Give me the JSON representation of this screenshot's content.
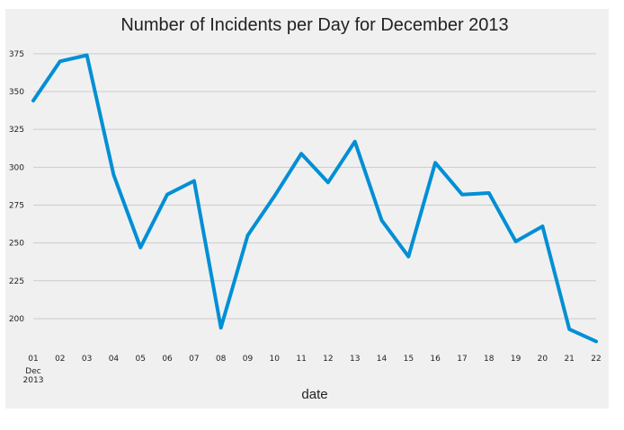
{
  "chart_data": {
    "type": "line",
    "title": "Number of Incidents per Day for December 2013",
    "xlabel": "date",
    "ylabel": "",
    "x_tick_labels": [
      "01",
      "02",
      "03",
      "04",
      "05",
      "06",
      "07",
      "08",
      "09",
      "10",
      "11",
      "12",
      "13",
      "14",
      "15",
      "16",
      "17",
      "18",
      "19",
      "20",
      "21",
      "22"
    ],
    "x_tick_sublabels": {
      "month": "Dec",
      "year": "2013"
    },
    "x": [
      "2013-12-01",
      "2013-12-02",
      "2013-12-03",
      "2013-12-04",
      "2013-12-05",
      "2013-12-06",
      "2013-12-07",
      "2013-12-08",
      "2013-12-09",
      "2013-12-10",
      "2013-12-11",
      "2013-12-12",
      "2013-12-13",
      "2013-12-14",
      "2013-12-15",
      "2013-12-16",
      "2013-12-17",
      "2013-12-18",
      "2013-12-19",
      "2013-12-20",
      "2013-12-21",
      "2013-12-22"
    ],
    "series": [
      {
        "values": [
          344,
          370,
          374,
          295,
          247,
          282,
          291,
          194,
          255,
          281,
          309,
          290,
          317,
          265,
          241,
          303,
          282,
          283,
          251,
          261,
          193,
          185
        ]
      }
    ],
    "y_ticks": [
      200,
      225,
      250,
      275,
      300,
      325,
      350,
      375
    ],
    "ylim": [
      181,
      385
    ],
    "grid": "horizontal",
    "line_color": "#008fd5",
    "background_color": "#f0f0f0",
    "grid_color": "#cbcbcb"
  }
}
